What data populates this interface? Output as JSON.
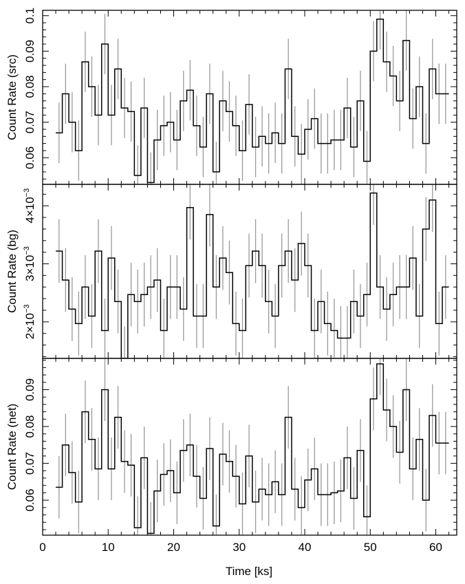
{
  "chart_data": {
    "type": "line",
    "style": {
      "line_color": "#000000",
      "errorbar_color": "#999999",
      "background": "#ffffff"
    },
    "xlabel": "Time [ks]",
    "xlim": [
      0,
      63.2
    ],
    "x_ticks": [
      0,
      10,
      20,
      30,
      40,
      50,
      60
    ],
    "x_tick_labels": [
      "0",
      "10",
      "20",
      "30",
      "40",
      "50",
      "60"
    ],
    "bin_width": 1,
    "x": [
      2.5,
      3.5,
      4.5,
      5.5,
      6.5,
      7.5,
      8.5,
      9.5,
      10.5,
      11.5,
      12.5,
      13.5,
      14.5,
      15.5,
      16.5,
      17.5,
      18.5,
      19.5,
      20.5,
      21.5,
      22.5,
      23.5,
      24.5,
      25.5,
      26.5,
      27.5,
      28.5,
      29.5,
      30.5,
      31.5,
      32.5,
      33.5,
      34.5,
      35.5,
      36.5,
      37.5,
      38.5,
      39.5,
      40.5,
      41.5,
      42.5,
      43.5,
      44.5,
      45.5,
      46.5,
      47.5,
      48.5,
      49.5,
      50.5,
      51.5,
      52.5,
      53.5,
      54.5,
      55.5,
      56.5,
      57.5,
      58.5,
      59.5,
      60.5,
      61.5
    ],
    "panels": [
      {
        "name": "src",
        "ylabel": "Count Rate (src)",
        "ylim": [
          0.0525,
          0.1015
        ],
        "y_ticks": [
          0.06,
          0.07,
          0.08,
          0.09,
          0.1
        ],
        "y_tick_labels": [
          "0.06",
          "0.07",
          "0.08",
          "0.09",
          "0.1"
        ],
        "values": [
          0.067,
          0.078,
          0.07,
          0.062,
          0.087,
          0.08,
          0.072,
          0.092,
          0.072,
          0.085,
          0.074,
          0.073,
          0.055,
          0.074,
          0.053,
          0.065,
          0.069,
          0.07,
          0.065,
          0.076,
          0.079,
          0.069,
          0.063,
          0.078,
          0.056,
          0.076,
          0.073,
          0.069,
          0.062,
          0.075,
          0.063,
          0.066,
          0.064,
          0.067,
          0.064,
          0.085,
          0.066,
          0.061,
          0.068,
          0.071,
          0.064,
          0.064,
          0.065,
          0.065,
          0.074,
          0.063,
          0.076,
          0.059,
          0.09,
          0.099,
          0.087,
          0.083,
          0.076,
          0.093,
          0.071,
          0.08,
          0.064,
          0.085,
          0.078,
          0.078
        ],
        "errors": [
          0.0085,
          0.0085,
          0.0085,
          0.0085,
          0.0085,
          0.0085,
          0.0085,
          0.0085,
          0.0085,
          0.0085,
          0.0085,
          0.0085,
          0.0085,
          0.0085,
          0.0085,
          0.0085,
          0.0085,
          0.0085,
          0.0085,
          0.0085,
          0.0085,
          0.0085,
          0.0085,
          0.0085,
          0.0085,
          0.0085,
          0.0085,
          0.0085,
          0.0085,
          0.0085,
          0.0085,
          0.0085,
          0.0085,
          0.0085,
          0.0085,
          0.0085,
          0.0085,
          0.0085,
          0.0085,
          0.0085,
          0.0085,
          0.0085,
          0.0085,
          0.0085,
          0.0085,
          0.0085,
          0.0085,
          0.0085,
          0.0085,
          0.0085,
          0.0085,
          0.0085,
          0.0085,
          0.0085,
          0.0085,
          0.0085,
          0.0085,
          0.0085,
          0.0085,
          0.0085
        ]
      },
      {
        "name": "bg",
        "ylabel": "Count Rate (bg)",
        "ylim": [
          0.00137,
          0.00437
        ],
        "y_ticks": [
          0.002,
          0.003,
          0.004
        ],
        "y_tick_labels": [
          [
            "2×10",
            "−3"
          ],
          [
            "3×10",
            "−3"
          ],
          [
            "4×10",
            "−3"
          ]
        ],
        "values": [
          0.00322,
          0.00272,
          0.00222,
          0.00197,
          0.0026,
          0.0021,
          0.00322,
          0.00185,
          0.0031,
          0.00235,
          0.00137,
          0.00247,
          0.00235,
          0.00247,
          0.0026,
          0.00272,
          0.00185,
          0.0026,
          0.0026,
          0.00222,
          0.00397,
          0.0021,
          0.0021,
          0.00385,
          0.0026,
          0.0031,
          0.00285,
          0.00197,
          0.00185,
          0.00297,
          0.00322,
          0.00297,
          0.00235,
          0.0021,
          0.00297,
          0.00322,
          0.00272,
          0.00335,
          0.00297,
          0.00185,
          0.00235,
          0.00197,
          0.00185,
          0.00172,
          0.00172,
          0.00235,
          0.0021,
          0.00247,
          0.00422,
          0.0026,
          0.00222,
          0.00247,
          0.0026,
          0.0026,
          0.0031,
          0.0021,
          0.0036,
          0.0041,
          0.00197,
          0.0026
        ],
        "errors": [
          0.00055,
          0.00055,
          0.00055,
          0.00055,
          0.00055,
          0.00055,
          0.00055,
          0.00055,
          0.00055,
          0.00055,
          0.00055,
          0.00055,
          0.00055,
          0.00055,
          0.00055,
          0.00055,
          0.00055,
          0.00055,
          0.00055,
          0.00055,
          0.00055,
          0.00055,
          0.00055,
          0.00055,
          0.00055,
          0.00055,
          0.00055,
          0.00055,
          0.00055,
          0.00055,
          0.00055,
          0.00055,
          0.00055,
          0.00055,
          0.00055,
          0.00055,
          0.00055,
          0.00055,
          0.00055,
          0.00055,
          0.00055,
          0.00055,
          0.00055,
          0.00055,
          0.00055,
          0.00055,
          0.00055,
          0.00055,
          0.00055,
          0.00055,
          0.00055,
          0.00055,
          0.00055,
          0.00055,
          0.00055,
          0.00055,
          0.00055,
          0.00055,
          0.00055,
          0.00055
        ]
      },
      {
        "name": "net",
        "ylabel": "Count Rate (net)",
        "ylim": [
          0.0505,
          0.0985
        ],
        "y_ticks": [
          0.06,
          0.07,
          0.08,
          0.09
        ],
        "y_tick_labels": [
          "0.06",
          "0.07",
          "0.08",
          "0.09"
        ],
        "values": [
          0.0635,
          0.075,
          0.0675,
          0.0595,
          0.084,
          0.0765,
          0.0685,
          0.09,
          0.0685,
          0.0825,
          0.0705,
          0.0695,
          0.0525,
          0.0715,
          0.051,
          0.0625,
          0.067,
          0.068,
          0.062,
          0.0735,
          0.075,
          0.0665,
          0.0605,
          0.074,
          0.053,
          0.0725,
          0.0705,
          0.0665,
          0.059,
          0.072,
          0.0595,
          0.063,
          0.0615,
          0.065,
          0.0615,
          0.0825,
          0.063,
          0.058,
          0.0655,
          0.0685,
          0.0615,
          0.0615,
          0.062,
          0.0625,
          0.0715,
          0.0605,
          0.0735,
          0.0555,
          0.0875,
          0.097,
          0.0845,
          0.08,
          0.073,
          0.09,
          0.0685,
          0.0765,
          0.06,
          0.083,
          0.0755,
          0.0755
        ],
        "errors": [
          0.0085,
          0.0085,
          0.0085,
          0.0085,
          0.0085,
          0.0085,
          0.0085,
          0.0085,
          0.0085,
          0.0085,
          0.0085,
          0.0085,
          0.0085,
          0.0085,
          0.0085,
          0.0085,
          0.0085,
          0.0085,
          0.0085,
          0.0085,
          0.0085,
          0.0085,
          0.0085,
          0.0085,
          0.0085,
          0.0085,
          0.0085,
          0.0085,
          0.0085,
          0.0085,
          0.0085,
          0.0085,
          0.0085,
          0.0085,
          0.0085,
          0.0085,
          0.0085,
          0.0085,
          0.0085,
          0.0085,
          0.0085,
          0.0085,
          0.0085,
          0.0085,
          0.0085,
          0.0085,
          0.0085,
          0.0085,
          0.0085,
          0.0085,
          0.0085,
          0.0085,
          0.0085,
          0.0085,
          0.0085,
          0.0085,
          0.0085,
          0.0085,
          0.0085,
          0.0085
        ]
      }
    ]
  }
}
